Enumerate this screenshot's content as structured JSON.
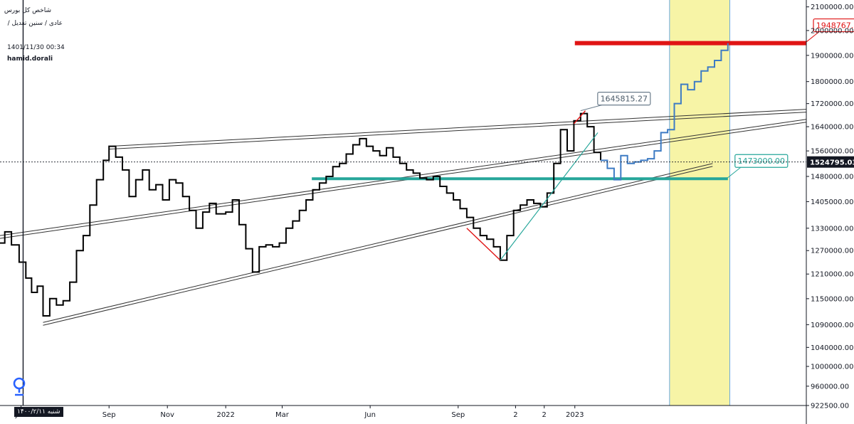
{
  "header": {
    "title": "شاخص کل بورس",
    "subtitle": "عادی / سنین تعدیل /",
    "timestamp": "1401/11/30 00:34",
    "author": "hamid.dorali"
  },
  "cursor_date": "شنبه ۱۴۰۰/۲/۱۱",
  "colors": {
    "price_line": "#000000",
    "projection": "#3d7bc4",
    "resistance": "#e01414",
    "support": "#26a69a",
    "highlight_zone": "#f7f4a6",
    "trend": "#555555"
  },
  "chart_data": {
    "type": "line",
    "title": "",
    "xlabel": "",
    "ylabel": "",
    "y_scale": "log",
    "ylim": [
      922500,
      2130000
    ],
    "xlim": [
      "2021-05-10",
      "2023-08-31"
    ],
    "grid": false,
    "y_ticks": [
      {
        "v": 2100000,
        "label": "2100000.00"
      },
      {
        "v": 2000000,
        "label": "2000000.00"
      },
      {
        "v": 1900000,
        "label": "1900000.00"
      },
      {
        "v": 1800000,
        "label": "1800000.00"
      },
      {
        "v": 1720000,
        "label": "1720000.00"
      },
      {
        "v": 1640000,
        "label": "1640000.00"
      },
      {
        "v": 1560000,
        "label": "1560000.00"
      },
      {
        "v": 1480000,
        "label": "1480000.00"
      },
      {
        "v": 1405000,
        "label": "1405000.00"
      },
      {
        "v": 1330000,
        "label": "1330000.00"
      },
      {
        "v": 1270000,
        "label": "1270000.00"
      },
      {
        "v": 1210000,
        "label": "1210000.00"
      },
      {
        "v": 1150000,
        "label": "1150000.00"
      },
      {
        "v": 1090000,
        "label": "1090000.00"
      },
      {
        "v": 1040000,
        "label": "1040000.00"
      },
      {
        "v": 1000000,
        "label": "1000000.00"
      },
      {
        "v": 960000,
        "label": "960000.00"
      },
      {
        "v": 922500,
        "label": "922500.00"
      }
    ],
    "x_ticks": [
      {
        "v": "2021-06-01",
        "label": "Jun"
      },
      {
        "v": "2021-09-01",
        "label": "Sep"
      },
      {
        "v": "2021-11-01",
        "label": "Nov"
      },
      {
        "v": "2022-01-01",
        "label": "2022"
      },
      {
        "v": "2022-03-01",
        "label": "Mar"
      },
      {
        "v": "2022-06-01",
        "label": "Jun"
      },
      {
        "v": "2022-09-01",
        "label": "Sep"
      },
      {
        "v": "2022-10-31",
        "label": "2"
      },
      {
        "v": "2022-11-30",
        "label": "2"
      },
      {
        "v": "2023-01-01",
        "label": "2023"
      }
    ],
    "series": [
      {
        "kind": "price",
        "points": [
          [
            "2021-05-10",
            1290000
          ],
          [
            "2021-05-15",
            1320000
          ],
          [
            "2021-05-22",
            1285000
          ],
          [
            "2021-05-30",
            1240000
          ],
          [
            "2021-06-06",
            1200000
          ],
          [
            "2021-06-12",
            1165000
          ],
          [
            "2021-06-18",
            1180000
          ],
          [
            "2021-06-24",
            1110000
          ],
          [
            "2021-07-01",
            1150000
          ],
          [
            "2021-07-08",
            1135000
          ],
          [
            "2021-07-15",
            1145000
          ],
          [
            "2021-07-22",
            1190000
          ],
          [
            "2021-07-29",
            1270000
          ],
          [
            "2021-08-05",
            1310000
          ],
          [
            "2021-08-12",
            1395000
          ],
          [
            "2021-08-19",
            1470000
          ],
          [
            "2021-08-26",
            1530000
          ],
          [
            "2021-09-01",
            1575000
          ],
          [
            "2021-09-08",
            1540000
          ],
          [
            "2021-09-15",
            1500000
          ],
          [
            "2021-09-22",
            1420000
          ],
          [
            "2021-09-29",
            1470000
          ],
          [
            "2021-10-06",
            1500000
          ],
          [
            "2021-10-13",
            1440000
          ],
          [
            "2021-10-20",
            1455000
          ],
          [
            "2021-10-27",
            1410000
          ],
          [
            "2021-11-03",
            1470000
          ],
          [
            "2021-11-10",
            1460000
          ],
          [
            "2021-11-17",
            1420000
          ],
          [
            "2021-11-24",
            1380000
          ],
          [
            "2021-12-01",
            1330000
          ],
          [
            "2021-12-08",
            1375000
          ],
          [
            "2021-12-15",
            1400000
          ],
          [
            "2021-12-22",
            1370000
          ],
          [
            "2022-01-01",
            1375000
          ],
          [
            "2022-01-08",
            1410000
          ],
          [
            "2022-01-15",
            1340000
          ],
          [
            "2022-01-22",
            1275000
          ],
          [
            "2022-01-29",
            1215000
          ],
          [
            "2022-02-05",
            1280000
          ],
          [
            "2022-02-12",
            1285000
          ],
          [
            "2022-02-19",
            1280000
          ],
          [
            "2022-02-26",
            1290000
          ],
          [
            "2022-03-05",
            1330000
          ],
          [
            "2022-03-12",
            1350000
          ],
          [
            "2022-03-19",
            1380000
          ],
          [
            "2022-03-26",
            1410000
          ],
          [
            "2022-04-02",
            1440000
          ],
          [
            "2022-04-09",
            1460000
          ],
          [
            "2022-04-16",
            1480000
          ],
          [
            "2022-04-23",
            1510000
          ],
          [
            "2022-04-30",
            1520000
          ],
          [
            "2022-05-07",
            1550000
          ],
          [
            "2022-05-14",
            1580000
          ],
          [
            "2022-05-21",
            1600000
          ],
          [
            "2022-05-28",
            1575000
          ],
          [
            "2022-06-04",
            1560000
          ],
          [
            "2022-06-11",
            1545000
          ],
          [
            "2022-06-18",
            1570000
          ],
          [
            "2022-06-25",
            1540000
          ],
          [
            "2022-07-02",
            1520000
          ],
          [
            "2022-07-09",
            1500000
          ],
          [
            "2022-07-16",
            1490000
          ],
          [
            "2022-07-23",
            1475000
          ],
          [
            "2022-07-30",
            1470000
          ],
          [
            "2022-08-06",
            1480000
          ],
          [
            "2022-08-13",
            1450000
          ],
          [
            "2022-08-20",
            1430000
          ],
          [
            "2022-08-27",
            1410000
          ],
          [
            "2022-09-03",
            1385000
          ],
          [
            "2022-09-10",
            1360000
          ],
          [
            "2022-09-17",
            1330000
          ],
          [
            "2022-09-24",
            1310000
          ],
          [
            "2022-10-01",
            1300000
          ],
          [
            "2022-10-08",
            1280000
          ],
          [
            "2022-10-15",
            1245000
          ],
          [
            "2022-10-22",
            1310000
          ],
          [
            "2022-10-29",
            1380000
          ],
          [
            "2022-11-05",
            1395000
          ],
          [
            "2022-11-12",
            1410000
          ],
          [
            "2022-11-19",
            1400000
          ],
          [
            "2022-11-26",
            1390000
          ],
          [
            "2022-12-03",
            1430000
          ],
          [
            "2022-12-10",
            1520000
          ],
          [
            "2022-12-17",
            1630000
          ],
          [
            "2022-12-24",
            1560000
          ],
          [
            "2022-12-31",
            1660000
          ],
          [
            "2023-01-07",
            1685000
          ],
          [
            "2023-01-14",
            1640000
          ],
          [
            "2023-01-21",
            1555000
          ],
          [
            "2023-01-28",
            1530000
          ]
        ]
      },
      {
        "kind": "projection",
        "points": [
          [
            "2023-01-28",
            1530000
          ],
          [
            "2023-02-04",
            1505000
          ],
          [
            "2023-02-11",
            1470000
          ],
          [
            "2023-02-18",
            1545000
          ],
          [
            "2023-02-25",
            1520000
          ],
          [
            "2023-03-04",
            1525000
          ],
          [
            "2023-03-11",
            1530000
          ],
          [
            "2023-03-18",
            1535000
          ],
          [
            "2023-03-25",
            1560000
          ],
          [
            "2023-04-01",
            1620000
          ],
          [
            "2023-04-08",
            1630000
          ],
          [
            "2023-04-15",
            1720000
          ],
          [
            "2023-04-22",
            1790000
          ],
          [
            "2023-04-29",
            1770000
          ],
          [
            "2023-05-06",
            1800000
          ],
          [
            "2023-05-13",
            1840000
          ],
          [
            "2023-05-20",
            1855000
          ],
          [
            "2023-05-27",
            1880000
          ],
          [
            "2023-06-03",
            1920000
          ],
          [
            "2023-06-10",
            1948768
          ]
        ]
      }
    ],
    "trend_lines": [
      {
        "from": [
          "2021-05-10",
          1310000
        ],
        "to": [
          "2023-08-31",
          1665000
        ]
      },
      {
        "from": [
          "2021-09-01",
          1575000
        ],
        "to": [
          "2023-08-31",
          1700000
        ]
      },
      {
        "from": [
          "2021-06-24",
          1095000
        ],
        "to": [
          "2023-05-25",
          1520000
        ]
      }
    ],
    "horizontal_levels": [
      {
        "kind": "resistance",
        "value": 1948767.73,
        "from": "2023-01-01",
        "to": "2023-08-31",
        "label": "1948767.73"
      },
      {
        "kind": "support",
        "value": 1473000,
        "from": "2022-04-01",
        "to": "2023-06-10",
        "label": "1473000.00"
      }
    ],
    "annotations": [
      {
        "label": "1645815.27",
        "at": [
          "2023-01-07",
          1685000
        ]
      }
    ],
    "current_price": {
      "value": 1524795.03,
      "label": "1524795.03"
    },
    "highlight_zone": {
      "from": "2023-04-10",
      "to": "2023-06-12"
    },
    "red_wedges": [
      {
        "from": [
          "2022-09-10",
          1330000
        ],
        "to": [
          "2022-10-15",
          1245000
        ]
      },
      {
        "from": [
          "2022-12-31",
          1650000
        ],
        "to": [
          "2023-01-12",
          1695000
        ]
      }
    ],
    "green_rise": {
      "from": [
        "2022-10-15",
        1245000
      ],
      "to": [
        "2023-01-25",
        1620000
      ]
    }
  }
}
